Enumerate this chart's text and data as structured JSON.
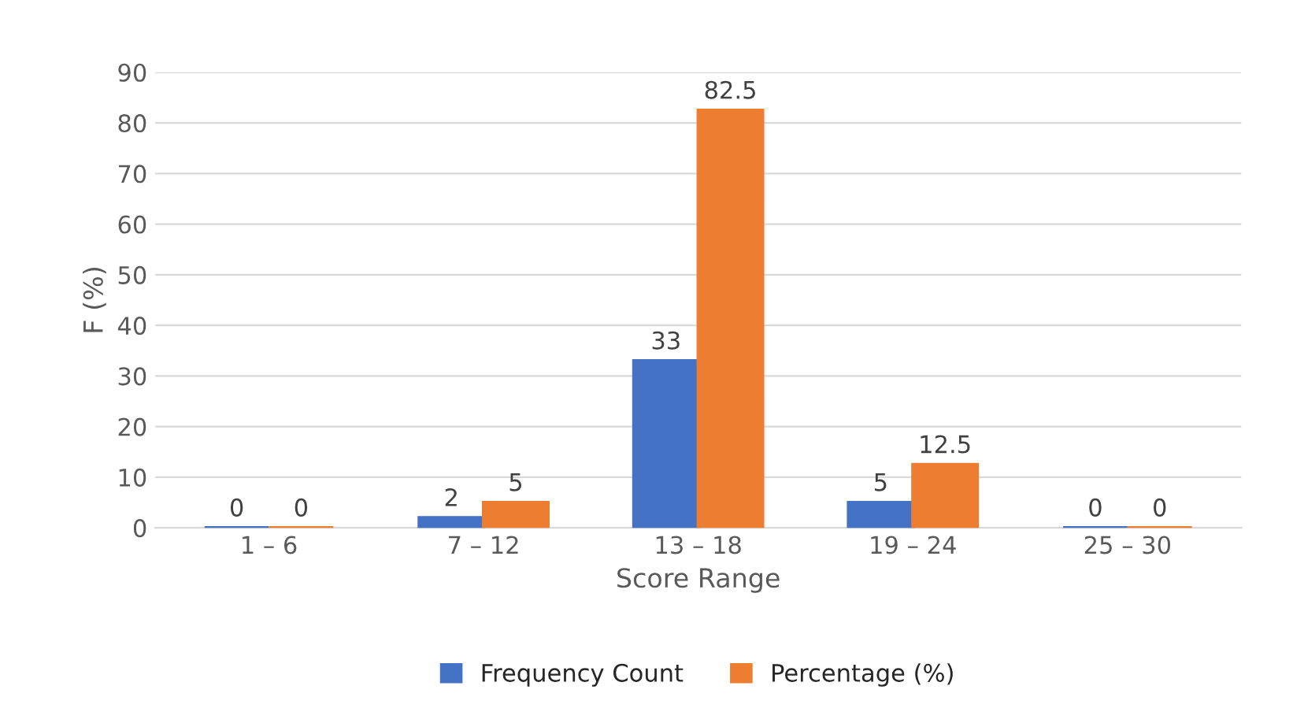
{
  "chart_data": {
    "type": "bar",
    "xlabel": "Score Range",
    "ylabel": "F (%)",
    "categories": [
      "1 – 6",
      "7 – 12",
      "13 – 18",
      "19 – 24",
      "25 – 30"
    ],
    "series": [
      {
        "name": "Frequency Count",
        "color": "#4472c4",
        "values": [
          0,
          2,
          33,
          5,
          0
        ]
      },
      {
        "name": "Percentage (%)",
        "color": "#ed7d31",
        "values": [
          0,
          5,
          82.5,
          12.5,
          0
        ]
      }
    ],
    "ylim": [
      0,
      90
    ],
    "yticks": [
      0,
      10,
      20,
      30,
      40,
      50,
      60,
      70,
      80,
      90
    ],
    "grid": "y",
    "legend": "bottom",
    "data_labels": true
  }
}
